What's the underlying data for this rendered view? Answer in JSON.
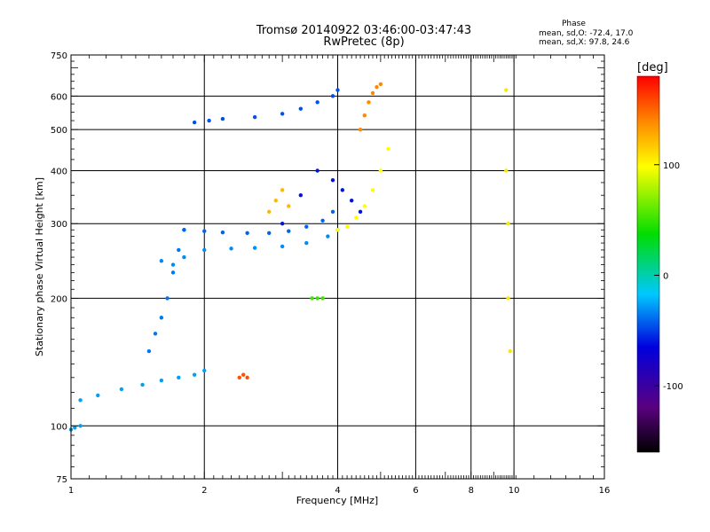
{
  "chart_data": {
    "type": "scatter",
    "title": "Tromsø 20140922 03:46:00-03:47:43",
    "subtitle": "RwPretec (8p)",
    "xlabel": "Frequency [MHz]",
    "ylabel": "Stationary phase Virtual Height [km]",
    "x_scale": "log",
    "y_scale": "log",
    "xlim": [
      1,
      16
    ],
    "ylim": [
      75,
      750
    ],
    "x_ticks": [
      "1",
      "2",
      "4",
      "6",
      "8",
      "10",
      "16"
    ],
    "y_ticks": [
      "75",
      "100",
      "200",
      "300",
      "400",
      "500",
      "600",
      "750"
    ],
    "grid": true,
    "phase_stats": {
      "heading": "Phase",
      "o_line": "mean, sd,O: -72.4, 17.0",
      "x_line": "mean, sd,X:  97.8, 24.6"
    },
    "colorbar": {
      "unit": "[deg]",
      "range": [
        -160,
        180
      ],
      "ticks": [
        "100",
        "0",
        "-100"
      ],
      "tick_values": [
        100,
        0,
        -100
      ]
    },
    "series": [
      {
        "x": [
          1.05,
          1.15,
          1.3,
          1.45,
          1.6,
          1.75,
          1.9,
          2.0
        ],
        "y": [
          115,
          118,
          122,
          125,
          128,
          130,
          132,
          135
        ],
        "phase": -60
      },
      {
        "x": [
          1.5,
          1.55,
          1.6,
          1.65,
          1.7,
          1.75,
          1.8
        ],
        "y": [
          150,
          165,
          180,
          200,
          230,
          260,
          290
        ],
        "phase": -70
      },
      {
        "x": [
          1.6,
          1.7,
          1.8,
          2.0,
          2.3,
          2.6,
          3.0,
          3.4,
          3.8,
          4.0
        ],
        "y": [
          245,
          240,
          250,
          260,
          262,
          263,
          265,
          270,
          280,
          290
        ],
        "phase": -65
      },
      {
        "x": [
          1.8,
          2.0,
          2.2,
          2.5,
          2.8,
          3.1,
          3.4,
          3.7,
          3.9
        ],
        "y": [
          290,
          288,
          286,
          285,
          285,
          288,
          295,
          305,
          320
        ],
        "phase": -75
      },
      {
        "x": [
          1.9,
          2.05,
          2.2,
          2.6,
          3.0,
          3.3,
          3.6,
          3.9,
          4.0
        ],
        "y": [
          520,
          525,
          530,
          535,
          545,
          560,
          580,
          600,
          620
        ],
        "phase": -80
      },
      {
        "x": [
          3.0,
          3.3,
          3.6,
          3.9,
          4.1,
          4.3,
          4.5
        ],
        "y": [
          300,
          350,
          400,
          380,
          360,
          340,
          320
        ],
        "phase": -95
      },
      {
        "x": [
          4.0,
          4.2,
          4.4,
          4.6,
          4.8,
          5.0,
          5.2
        ],
        "y": [
          290,
          295,
          310,
          330,
          360,
          400,
          450
        ],
        "phase": 80
      },
      {
        "x": [
          4.5,
          4.6,
          4.7,
          4.8,
          4.9,
          5.0
        ],
        "y": [
          500,
          540,
          580,
          610,
          630,
          640
        ],
        "phase": 130
      },
      {
        "x": [
          2.8,
          2.9,
          3.0,
          3.1
        ],
        "y": [
          320,
          340,
          360,
          330
        ],
        "phase": 110
      },
      {
        "x": [
          3.5,
          3.6,
          3.7
        ],
        "y": [
          200,
          200,
          200
        ],
        "phase": 20
      },
      {
        "x": [
          2.4,
          2.45,
          2.5
        ],
        "y": [
          130,
          132,
          130
        ],
        "phase": 150
      },
      {
        "x": [
          9.6,
          9.6,
          9.7,
          9.7,
          9.8
        ],
        "y": [
          620,
          400,
          300,
          200,
          150
        ],
        "phase": 90
      },
      {
        "x": [
          1.0,
          1.02,
          1.05
        ],
        "y": [
          98,
          99,
          100
        ],
        "phase": -60
      }
    ]
  }
}
